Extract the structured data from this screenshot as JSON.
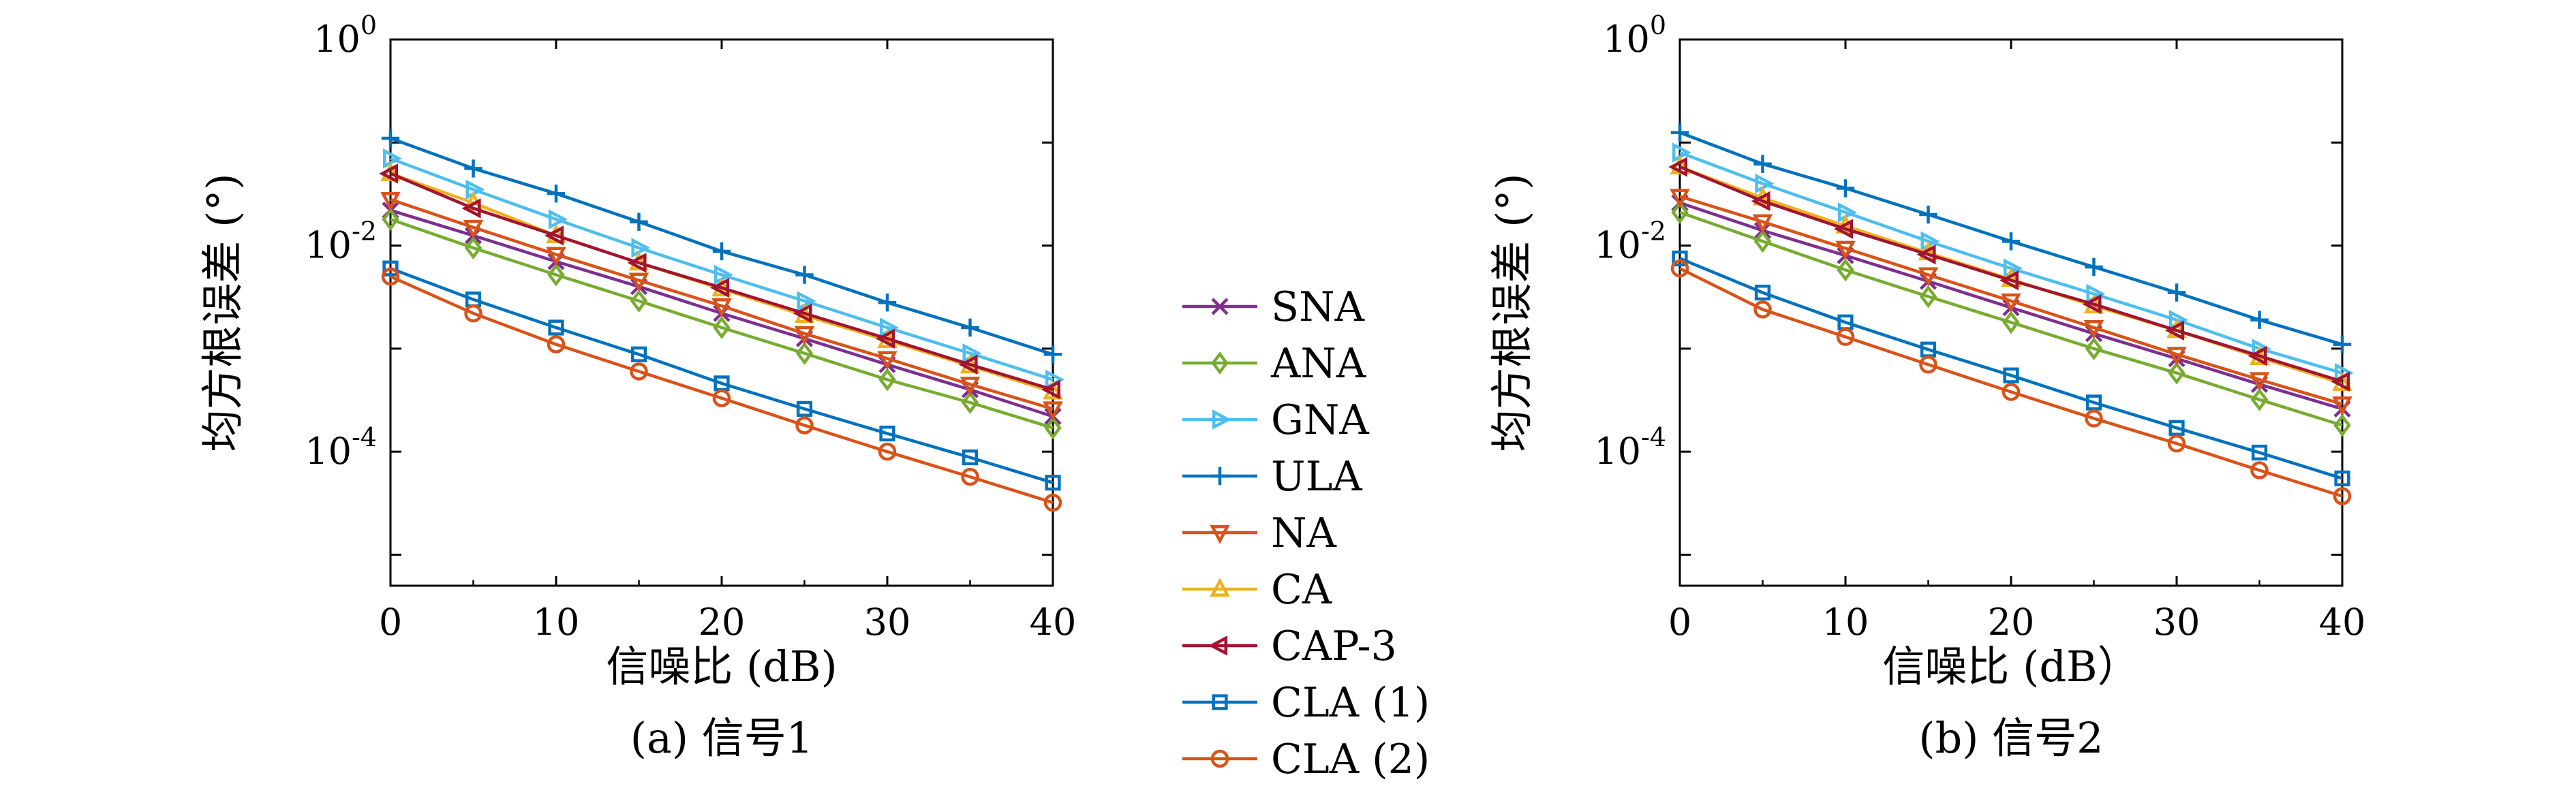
{
  "chart_data": [
    {
      "type": "line",
      "caption": "(a) 信号1",
      "xlabel": "信噪比 (dB)",
      "ylabel": "均方根误差 (°)",
      "yscale": "log",
      "xlim": [
        0,
        40
      ],
      "ylim": [
        5e-06,
        1
      ],
      "xticks": [
        "0",
        "10",
        "20",
        "30",
        "40"
      ],
      "yticks": [
        {
          "base": "10",
          "exp": "0",
          "value": 1
        },
        {
          "base": "10",
          "exp": "-2",
          "value": 0.01
        },
        {
          "base": "10",
          "exp": "-4",
          "value": 0.0001
        }
      ],
      "grid": false,
      "x": [
        0,
        5,
        10,
        15,
        20,
        25,
        30,
        35,
        40
      ],
      "series": [
        {
          "name": "SNA",
          "color": "#7E2F8E",
          "marker": "x",
          "values": [
            0.022,
            0.0125,
            0.007,
            0.004,
            0.0022,
            0.00125,
            0.0007,
            0.0004,
            0.00022
          ]
        },
        {
          "name": "ANA",
          "color": "#77AC30",
          "marker": "diamond",
          "values": [
            0.018,
            0.0095,
            0.0052,
            0.0029,
            0.0016,
            0.0009,
            0.0005,
            0.0003,
            0.00017
          ]
        },
        {
          "name": "GNA",
          "color": "#4DBEEE",
          "marker": "triangle-right",
          "values": [
            0.07,
            0.035,
            0.018,
            0.0095,
            0.0052,
            0.0029,
            0.0016,
            0.0009,
            0.0005
          ]
        },
        {
          "name": "ULA",
          "color": "#0072BD",
          "marker": "plus",
          "values": [
            0.11,
            0.056,
            0.032,
            0.017,
            0.0088,
            0.0052,
            0.0028,
            0.0016,
            0.00088
          ]
        },
        {
          "name": "NA",
          "color": "#D95319",
          "marker": "triangle-down",
          "values": [
            0.028,
            0.015,
            0.0082,
            0.0046,
            0.0026,
            0.0014,
            0.0008,
            0.00045,
            0.00026
          ]
        },
        {
          "name": "CA",
          "color": "#EDB120",
          "marker": "triangle-up",
          "values": [
            0.05,
            0.026,
            0.0125,
            0.0068,
            0.0038,
            0.0021,
            0.0012,
            0.00068,
            0.00038
          ]
        },
        {
          "name": "CAP-3",
          "color": "#A2142F",
          "marker": "triangle-left",
          "values": [
            0.05,
            0.023,
            0.0125,
            0.0068,
            0.0039,
            0.0022,
            0.00125,
            0.0007,
            0.0004
          ]
        },
        {
          "name": "CLA (1)",
          "color": "#0072BD",
          "marker": "square",
          "values": [
            0.006,
            0.003,
            0.0016,
            0.00088,
            0.00046,
            0.00026,
            0.00015,
            8.8e-05,
            5e-05
          ]
        },
        {
          "name": "CLA (2)",
          "color": "#D95319",
          "marker": "circle",
          "values": [
            0.005,
            0.0022,
            0.0011,
            0.0006,
            0.00033,
            0.00018,
            0.0001,
            5.7e-05,
            3.2e-05
          ]
        }
      ]
    },
    {
      "type": "line",
      "caption": "(b) 信号2",
      "xlabel": "信噪比 (dB）",
      "ylabel": "均方根误差 (°)",
      "yscale": "log",
      "xlim": [
        0,
        40
      ],
      "ylim": [
        5e-06,
        1
      ],
      "xticks": [
        "0",
        "10",
        "20",
        "30",
        "40"
      ],
      "yticks": [
        {
          "base": "10",
          "exp": "0",
          "value": 1
        },
        {
          "base": "10",
          "exp": "-2",
          "value": 0.01
        },
        {
          "base": "10",
          "exp": "-4",
          "value": 0.0001
        }
      ],
      "grid": false,
      "x": [
        0,
        5,
        10,
        15,
        20,
        25,
        30,
        35,
        40
      ],
      "series": [
        {
          "name": "SNA",
          "color": "#7E2F8E",
          "marker": "x",
          "values": [
            0.026,
            0.014,
            0.008,
            0.0045,
            0.0025,
            0.0014,
            0.0008,
            0.00045,
            0.00026
          ]
        },
        {
          "name": "ANA",
          "color": "#77AC30",
          "marker": "diamond",
          "values": [
            0.021,
            0.011,
            0.0058,
            0.0032,
            0.0018,
            0.001,
            0.00058,
            0.00032,
            0.00018
          ]
        },
        {
          "name": "GNA",
          "color": "#4DBEEE",
          "marker": "triangle-right",
          "values": [
            0.08,
            0.04,
            0.021,
            0.011,
            0.006,
            0.0034,
            0.0019,
            0.001,
            0.00058
          ]
        },
        {
          "name": "ULA",
          "color": "#0072BD",
          "marker": "plus",
          "values": [
            0.125,
            0.062,
            0.036,
            0.02,
            0.011,
            0.0062,
            0.0035,
            0.0019,
            0.0011
          ]
        },
        {
          "name": "NA",
          "color": "#D95319",
          "marker": "triangle-down",
          "values": [
            0.03,
            0.017,
            0.0094,
            0.0052,
            0.0029,
            0.0016,
            0.00088,
            0.0005,
            0.00029
          ]
        },
        {
          "name": "CA",
          "color": "#EDB120",
          "marker": "triangle-up",
          "values": [
            0.058,
            0.029,
            0.0155,
            0.0085,
            0.0047,
            0.0026,
            0.0015,
            0.00082,
            0.00046
          ]
        },
        {
          "name": "CAP-3",
          "color": "#A2142F",
          "marker": "triangle-left",
          "values": [
            0.058,
            0.027,
            0.0145,
            0.0082,
            0.0046,
            0.0027,
            0.0015,
            0.00085,
            0.00048
          ]
        },
        {
          "name": "CLA (1)",
          "color": "#0072BD",
          "marker": "square",
          "values": [
            0.0075,
            0.0035,
            0.0018,
            0.00098,
            0.00055,
            0.0003,
            0.00017,
            9.8e-05,
            5.5e-05
          ]
        },
        {
          "name": "CLA (2)",
          "color": "#D95319",
          "marker": "circle",
          "values": [
            0.006,
            0.0024,
            0.0013,
            0.0007,
            0.00038,
            0.00021,
            0.00012,
            6.6e-05,
            3.7e-05
          ]
        }
      ]
    }
  ]
}
